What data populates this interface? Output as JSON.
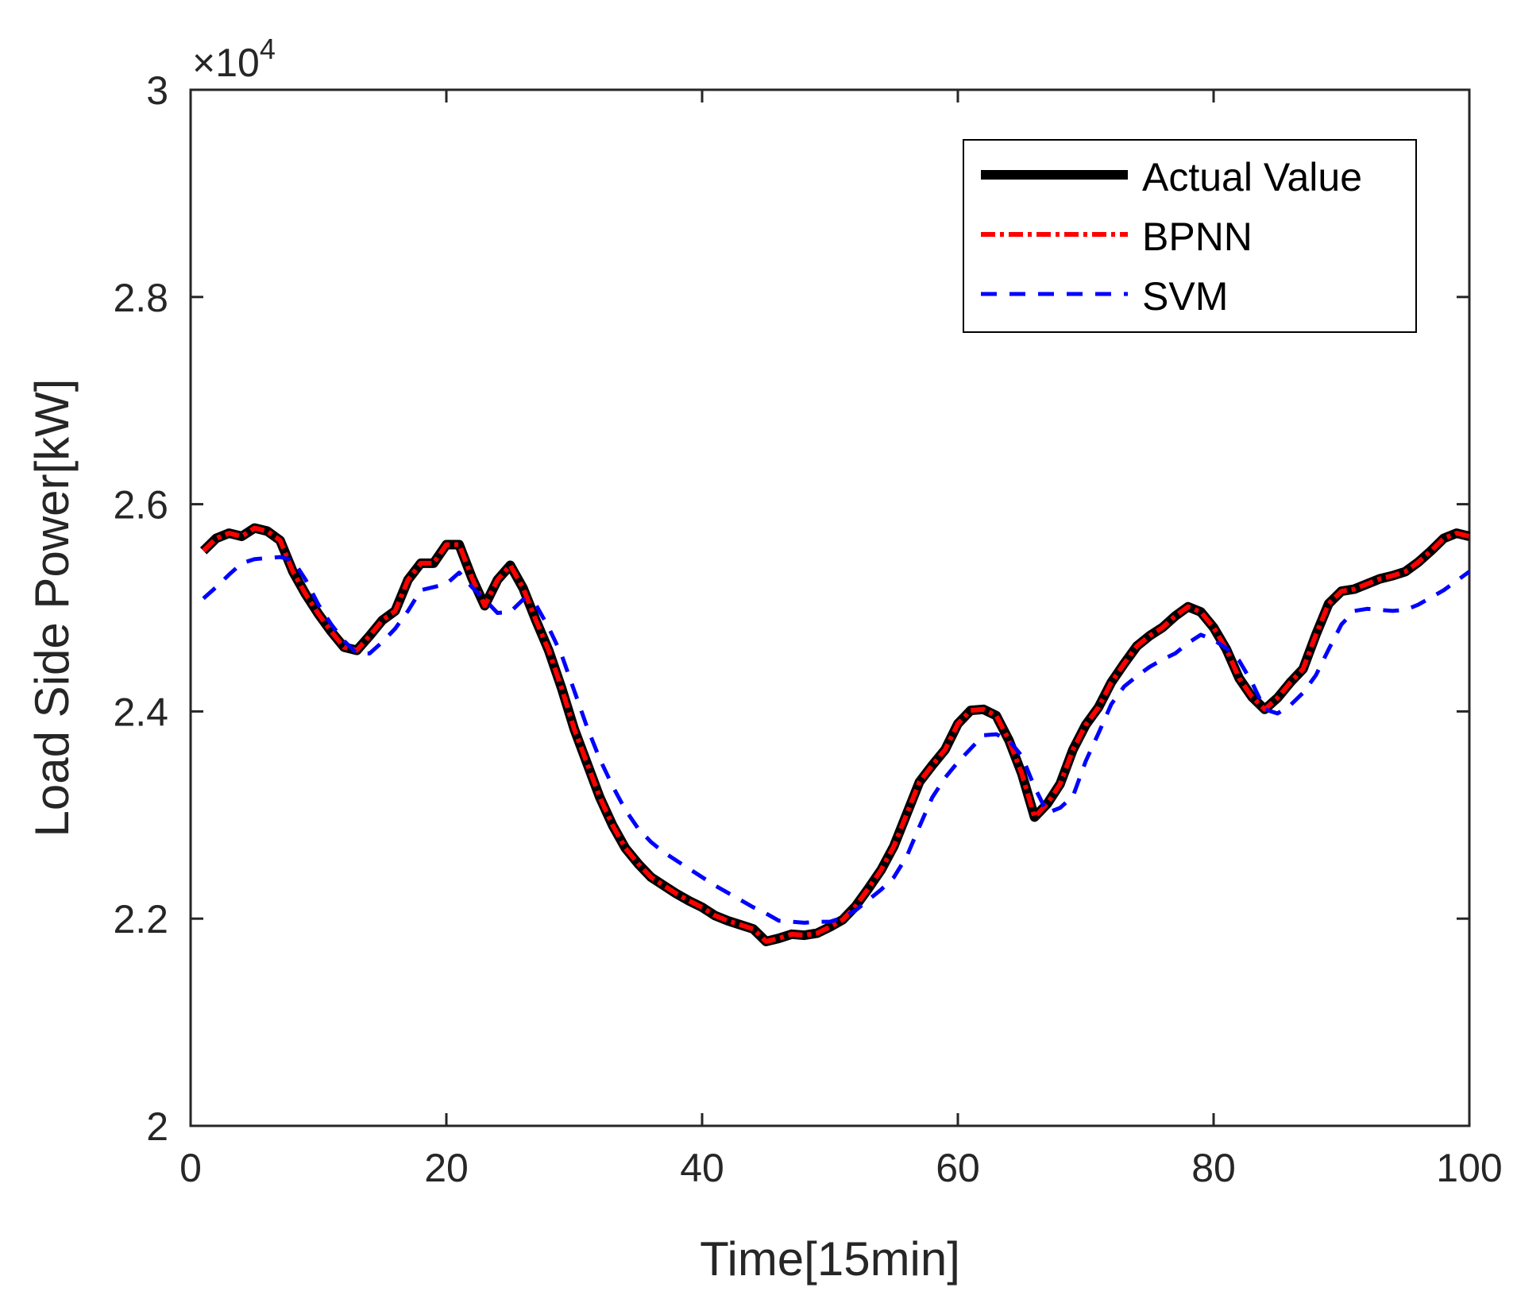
{
  "chart_data": {
    "type": "line",
    "title": "",
    "xlabel": "Time[15min]",
    "ylabel": "Load Side Power[kW]",
    "y_exponent_label": "×10",
    "y_exponent_power": "4",
    "xlim": [
      0,
      100
    ],
    "ylim": [
      2.0,
      3.0
    ],
    "x_ticks": [
      0,
      20,
      40,
      60,
      80,
      100
    ],
    "x_tick_labels": [
      "0",
      "20",
      "40",
      "60",
      "80",
      "100"
    ],
    "y_ticks": [
      2.0,
      2.2,
      2.4,
      2.6,
      2.8,
      3.0
    ],
    "y_tick_labels": [
      "2",
      "2.2",
      "2.4",
      "2.6",
      "2.8",
      "3"
    ],
    "legend_position": "top-right",
    "x": [
      1,
      2,
      3,
      4,
      5,
      6,
      7,
      8,
      9,
      10,
      11,
      12,
      13,
      14,
      15,
      16,
      17,
      18,
      19,
      20,
      21,
      22,
      23,
      24,
      25,
      26,
      27,
      28,
      29,
      30,
      31,
      32,
      33,
      34,
      35,
      36,
      37,
      38,
      39,
      40,
      41,
      42,
      43,
      44,
      45,
      46,
      47,
      48,
      49,
      50,
      51,
      52,
      53,
      54,
      55,
      56,
      57,
      58,
      59,
      60,
      61,
      62,
      63,
      64,
      65,
      66,
      67,
      68,
      69,
      70,
      71,
      72,
      73,
      74,
      75,
      76,
      77,
      78,
      79,
      80,
      81,
      82,
      83,
      84,
      85,
      86,
      87,
      88,
      89,
      90,
      91,
      92,
      93,
      94,
      95,
      96,
      97,
      98,
      99,
      100
    ],
    "series": [
      {
        "name": "Actual Value",
        "color": "#000000",
        "style": "solid",
        "values": [
          2.555,
          2.567,
          2.572,
          2.569,
          2.577,
          2.574,
          2.565,
          2.535,
          2.513,
          2.494,
          2.477,
          2.462,
          2.459,
          2.473,
          2.488,
          2.497,
          2.527,
          2.543,
          2.543,
          2.561,
          2.561,
          2.529,
          2.502,
          2.527,
          2.541,
          2.519,
          2.488,
          2.459,
          2.423,
          2.383,
          2.35,
          2.317,
          2.29,
          2.268,
          2.253,
          2.24,
          2.232,
          2.224,
          2.217,
          2.211,
          2.203,
          2.198,
          2.194,
          2.19,
          2.178,
          2.181,
          2.185,
          2.184,
          2.186,
          2.192,
          2.199,
          2.212,
          2.229,
          2.247,
          2.27,
          2.301,
          2.332,
          2.348,
          2.363,
          2.388,
          2.401,
          2.402,
          2.396,
          2.372,
          2.34,
          2.298,
          2.311,
          2.33,
          2.363,
          2.387,
          2.404,
          2.428,
          2.446,
          2.463,
          2.473,
          2.481,
          2.492,
          2.501,
          2.496,
          2.481,
          2.46,
          2.432,
          2.414,
          2.402,
          2.413,
          2.428,
          2.441,
          2.474,
          2.504,
          2.516,
          2.518,
          2.523,
          2.528,
          2.531,
          2.535,
          2.544,
          2.555,
          2.567,
          2.572,
          2.569
        ]
      },
      {
        "name": "BPNN",
        "color": "#ff0000",
        "style": "dashdot",
        "values": [
          2.555,
          2.567,
          2.572,
          2.569,
          2.577,
          2.574,
          2.565,
          2.535,
          2.513,
          2.494,
          2.477,
          2.462,
          2.459,
          2.473,
          2.488,
          2.497,
          2.527,
          2.543,
          2.543,
          2.561,
          2.561,
          2.529,
          2.502,
          2.527,
          2.541,
          2.519,
          2.488,
          2.459,
          2.423,
          2.383,
          2.35,
          2.317,
          2.29,
          2.268,
          2.253,
          2.24,
          2.232,
          2.224,
          2.217,
          2.211,
          2.203,
          2.198,
          2.194,
          2.19,
          2.178,
          2.181,
          2.185,
          2.184,
          2.186,
          2.192,
          2.199,
          2.212,
          2.229,
          2.247,
          2.27,
          2.301,
          2.332,
          2.348,
          2.363,
          2.388,
          2.401,
          2.402,
          2.396,
          2.372,
          2.34,
          2.298,
          2.311,
          2.33,
          2.363,
          2.387,
          2.404,
          2.428,
          2.446,
          2.463,
          2.473,
          2.481,
          2.492,
          2.501,
          2.496,
          2.481,
          2.46,
          2.432,
          2.414,
          2.402,
          2.413,
          2.428,
          2.441,
          2.474,
          2.504,
          2.516,
          2.518,
          2.523,
          2.528,
          2.531,
          2.535,
          2.544,
          2.555,
          2.567,
          2.572,
          2.569
        ]
      },
      {
        "name": "SVM",
        "color": "#0000ff",
        "style": "dashed",
        "values": [
          2.509,
          2.52,
          2.532,
          2.543,
          2.547,
          2.548,
          2.549,
          2.546,
          2.527,
          2.503,
          2.484,
          2.468,
          2.456,
          2.456,
          2.467,
          2.48,
          2.497,
          2.517,
          2.52,
          2.523,
          2.534,
          2.52,
          2.508,
          2.495,
          2.496,
          2.508,
          2.503,
          2.481,
          2.455,
          2.42,
          2.385,
          2.354,
          2.328,
          2.305,
          2.287,
          2.274,
          2.264,
          2.256,
          2.248,
          2.24,
          2.232,
          2.225,
          2.218,
          2.211,
          2.205,
          2.198,
          2.197,
          2.196,
          2.197,
          2.197,
          2.201,
          2.208,
          2.218,
          2.228,
          2.24,
          2.26,
          2.289,
          2.317,
          2.336,
          2.351,
          2.364,
          2.377,
          2.378,
          2.372,
          2.357,
          2.327,
          2.302,
          2.307,
          2.318,
          2.352,
          2.379,
          2.407,
          2.424,
          2.434,
          2.443,
          2.45,
          2.456,
          2.466,
          2.474,
          2.469,
          2.461,
          2.449,
          2.428,
          2.402,
          2.398,
          2.406,
          2.418,
          2.435,
          2.46,
          2.484,
          2.497,
          2.499,
          2.498,
          2.497,
          2.498,
          2.503,
          2.51,
          2.517,
          2.526,
          2.535
        ]
      }
    ]
  }
}
